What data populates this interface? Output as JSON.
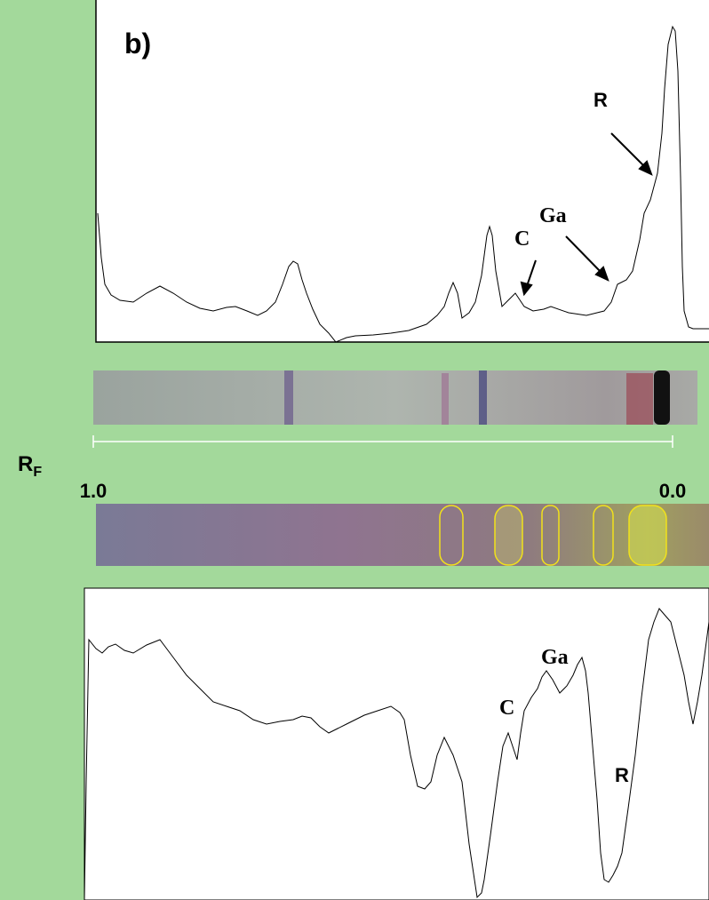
{
  "panel_label": "b)",
  "top_annotations": {
    "r": "R",
    "ga": "Ga",
    "c": "C"
  },
  "axis": {
    "rf": {
      "main": "R",
      "sub": "F"
    },
    "start": "1.0",
    "end": "0.0"
  },
  "bottom_annotations": {
    "ga": "Ga",
    "c": "C",
    "r": "R"
  }
}
